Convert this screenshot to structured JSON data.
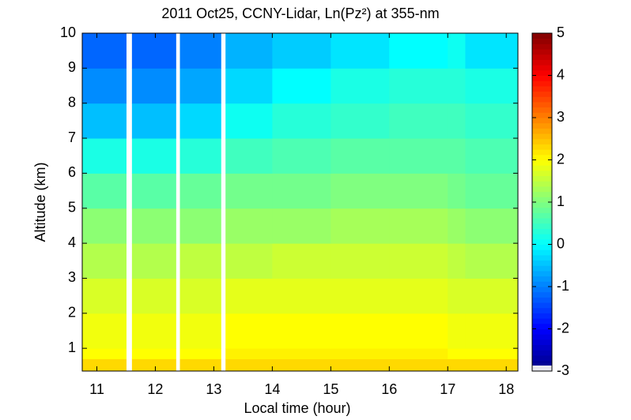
{
  "chart_data": {
    "type": "heatmap",
    "title": "2011 Oct25, CCNY-Lidar, Ln(Pz²) at 355-nm",
    "xlabel": "Local time (hour)",
    "ylabel": "Altitude (km)",
    "xbins": [
      10.75,
      11.5,
      11.6,
      12.35,
      12.42,
      13.12,
      13.2,
      14,
      15,
      16,
      17,
      17.3,
      18.2
    ],
    "ybins": [
      0.35,
      0.7,
      1,
      2,
      3,
      4,
      5,
      6,
      7,
      8,
      9,
      10
    ],
    "values": [
      [
        2.3,
        null,
        2.3,
        null,
        2.3,
        null,
        2.3,
        2.3,
        2.3,
        2.3,
        2.3,
        2.3
      ],
      [
        2.0,
        null,
        2.0,
        null,
        2.0,
        null,
        2.1,
        2.1,
        2.1,
        2.1,
        2.0,
        2.0
      ],
      [
        1.9,
        null,
        1.9,
        null,
        1.9,
        null,
        2.0,
        2.0,
        2.0,
        2.0,
        1.9,
        1.9
      ],
      [
        1.7,
        null,
        1.7,
        null,
        1.7,
        null,
        1.8,
        1.8,
        1.8,
        1.8,
        1.7,
        1.7
      ],
      [
        1.4,
        null,
        1.4,
        null,
        1.5,
        null,
        1.5,
        1.6,
        1.6,
        1.6,
        1.5,
        1.4
      ],
      [
        1.1,
        null,
        1.1,
        null,
        1.1,
        null,
        1.2,
        1.2,
        1.3,
        1.3,
        1.2,
        1.1
      ],
      [
        0.7,
        null,
        0.7,
        null,
        0.8,
        null,
        0.9,
        0.9,
        1.0,
        1.0,
        0.9,
        0.8
      ],
      [
        0.2,
        null,
        0.2,
        null,
        0.3,
        null,
        0.5,
        0.6,
        0.7,
        0.7,
        0.7,
        0.6
      ],
      [
        -0.5,
        null,
        -0.5,
        null,
        -0.3,
        null,
        0.1,
        0.3,
        0.4,
        0.5,
        0.5,
        0.4
      ],
      [
        -0.9,
        null,
        -0.9,
        null,
        -0.7,
        null,
        -0.3,
        0.0,
        0.2,
        0.3,
        0.3,
        0.2
      ],
      [
        -1.2,
        null,
        -1.2,
        null,
        -1.0,
        null,
        -0.6,
        -0.4,
        -0.2,
        0.0,
        0.1,
        -0.2
      ]
    ],
    "xlim": [
      10.75,
      18.2
    ],
    "xticks": [
      11,
      12,
      13,
      14,
      15,
      16,
      17,
      18
    ],
    "ylim": [
      0.35,
      10
    ],
    "yticks": [
      1,
      2,
      3,
      4,
      5,
      6,
      7,
      8,
      9,
      10
    ],
    "clim": [
      -3,
      5
    ],
    "cticks": [
      -3,
      -2,
      -1,
      0,
      1,
      2,
      3,
      4,
      5
    ],
    "colormap": "jet"
  }
}
